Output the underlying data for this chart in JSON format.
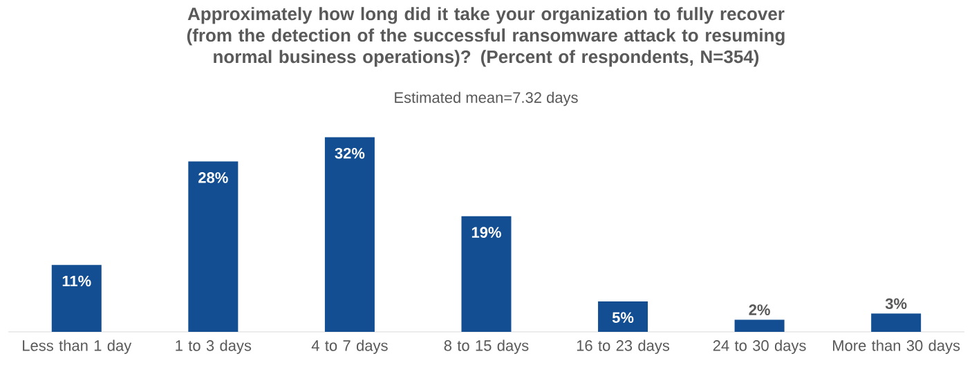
{
  "chart_data": {
    "type": "bar",
    "title": "Approximately how long did it take your organization to fully recover (from the detection of the successful ransomware attack to resuming normal business operations)? (Percent of respondents, N=354)",
    "subtitle": "Estimated mean=7.32 days",
    "categories": [
      "Less than 1 day",
      "1 to 3 days",
      "4 to 7 days",
      "8 to 15 days",
      "16 to 23 days",
      "24 to 30 days",
      "More than 30 days"
    ],
    "values": [
      11,
      28,
      32,
      19,
      5,
      2,
      3
    ],
    "value_labels": [
      "11%",
      "28%",
      "32%",
      "19%",
      "5%",
      "2%",
      "3%"
    ],
    "color": "#124e91"
  }
}
